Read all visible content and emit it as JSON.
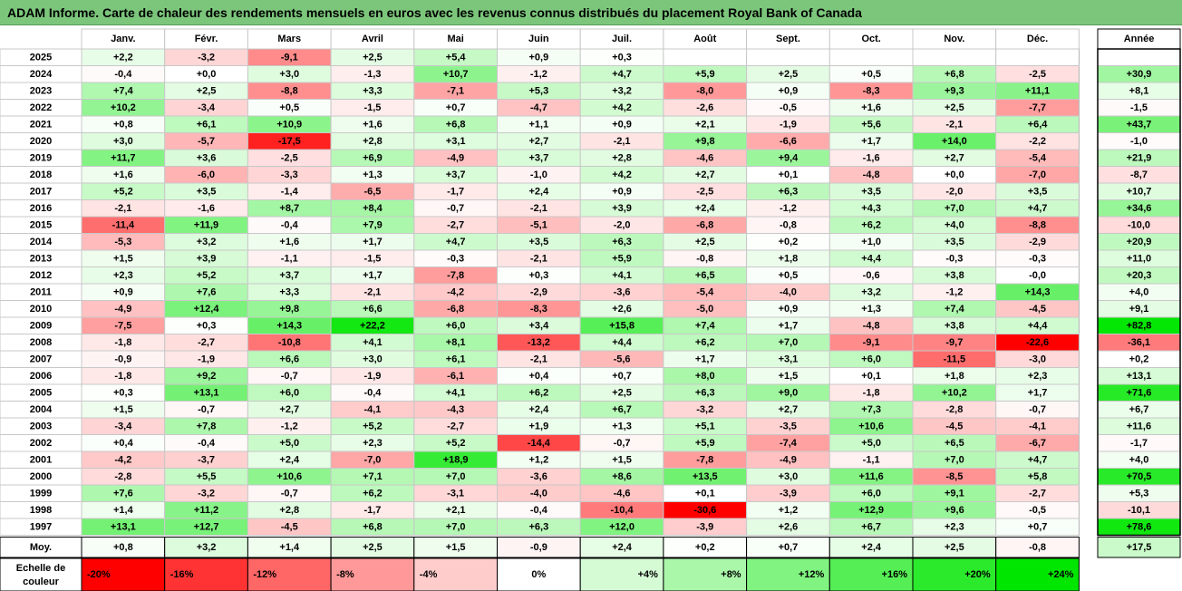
{
  "title": "ADAM Informe. Carte de chaleur des rendements mensuels en euros avec les revenus connus distribués du placement Royal Bank of Canada",
  "chart_data": {
    "type": "heatmap",
    "title": "ADAM Informe. Carte de chaleur des rendements mensuels en euros avec les revenus connus distribués du placement Royal Bank of Canada",
    "months": [
      "Janv.",
      "Févr.",
      "Mars",
      "Avril",
      "Mai",
      "Juin",
      "Juil.",
      "Août",
      "Sept.",
      "Oct.",
      "Nov.",
      "Déc."
    ],
    "year_header": "Année",
    "avg_label": "Moy.",
    "years": [
      "2025",
      "2024",
      "2023",
      "2022",
      "2021",
      "2020",
      "2019",
      "2018",
      "2017",
      "2016",
      "2015",
      "2014",
      "2013",
      "2012",
      "2011",
      "2010",
      "2009",
      "2008",
      "2007",
      "2006",
      "2005",
      "2004",
      "2003",
      "2002",
      "2001",
      "2000",
      "1999",
      "1998",
      "1997"
    ],
    "monthly": [
      [
        "+2,2",
        "-3,2",
        "-9,1",
        "+2,5",
        "+5,4",
        "+0,9",
        "+0,3",
        "",
        "",
        "",
        "",
        ""
      ],
      [
        "-0,4",
        "+0,0",
        "+3,0",
        "-1,3",
        "+10,7",
        "-1,2",
        "+4,7",
        "+5,9",
        "+2,5",
        "+0,5",
        "+6,8",
        "-2,5"
      ],
      [
        "+7,4",
        "+2,5",
        "-8,8",
        "+3,3",
        "-7,1",
        "+5,3",
        "+3,2",
        "-8,0",
        "+0,9",
        "-8,3",
        "+9,3",
        "+11,1"
      ],
      [
        "+10,2",
        "-3,4",
        "+0,5",
        "-1,5",
        "+0,7",
        "-4,7",
        "+4,2",
        "-2,6",
        "-0,5",
        "+1,6",
        "+2,5",
        "-7,7"
      ],
      [
        "+0,8",
        "+6,1",
        "+10,9",
        "+1,6",
        "+6,8",
        "+1,1",
        "+0,9",
        "+2,1",
        "-1,9",
        "+5,6",
        "-2,1",
        "+6,4"
      ],
      [
        "+3,0",
        "-5,7",
        "-17,5",
        "+2,8",
        "+3,1",
        "+2,7",
        "-2,1",
        "+9,8",
        "-6,6",
        "+1,7",
        "+14,0",
        "-2,2"
      ],
      [
        "+11,7",
        "+3,6",
        "-2,5",
        "+6,9",
        "-4,9",
        "+3,7",
        "+2,8",
        "-4,6",
        "+9,4",
        "-1,6",
        "+2,7",
        "-5,4"
      ],
      [
        "+1,6",
        "-6,0",
        "-3,3",
        "+1,3",
        "+3,7",
        "-1,0",
        "+4,2",
        "+2,7",
        "+0,1",
        "-4,8",
        "+0,0",
        "-7,0"
      ],
      [
        "+5,2",
        "+3,5",
        "-1,4",
        "-6,5",
        "-1,7",
        "+2,4",
        "+0,9",
        "-2,5",
        "+6,3",
        "+3,5",
        "-2,0",
        "+3,5"
      ],
      [
        "-2,1",
        "-1,6",
        "+8,7",
        "+8,4",
        "-0,7",
        "-2,1",
        "+3,9",
        "+2,4",
        "-1,2",
        "+4,3",
        "+7,0",
        "+4,7"
      ],
      [
        "-11,4",
        "+11,9",
        "-0,4",
        "+7,9",
        "-2,7",
        "-5,1",
        "-2,0",
        "-6,8",
        "-0,8",
        "+6,2",
        "+4,0",
        "-8,8"
      ],
      [
        "-5,3",
        "+3,2",
        "+1,6",
        "+1,7",
        "+4,7",
        "+3,5",
        "+6,3",
        "+2,5",
        "+0,2",
        "+1,0",
        "+3,5",
        "-2,9"
      ],
      [
        "+1,5",
        "+3,9",
        "-1,1",
        "-1,5",
        "-0,3",
        "-2,1",
        "+5,9",
        "-0,8",
        "+1,8",
        "+4,4",
        "-0,3",
        "-0,3"
      ],
      [
        "+2,3",
        "+5,2",
        "+3,7",
        "+1,7",
        "-7,8",
        "+0,3",
        "+4,1",
        "+6,5",
        "+0,5",
        "-0,6",
        "+3,8",
        "-0,0"
      ],
      [
        "+0,9",
        "+7,6",
        "+3,3",
        "-2,1",
        "-4,2",
        "-2,9",
        "-3,6",
        "-5,4",
        "-4,0",
        "+3,2",
        "-1,2",
        "+14,3"
      ],
      [
        "-4,9",
        "+12,4",
        "+9,8",
        "+6,6",
        "-6,8",
        "-8,3",
        "+2,6",
        "-5,0",
        "+0,9",
        "+1,3",
        "+7,4",
        "-4,5"
      ],
      [
        "-7,5",
        "+0,3",
        "+14,3",
        "+22,2",
        "+6,0",
        "+3,4",
        "+15,8",
        "+7,4",
        "+1,7",
        "-4,8",
        "+3,8",
        "+4,4"
      ],
      [
        "-1,8",
        "-2,7",
        "-10,8",
        "+4,1",
        "+8,1",
        "-13,2",
        "+4,4",
        "+6,2",
        "+7,0",
        "-9,1",
        "-9,7",
        "-22,6"
      ],
      [
        "-0,9",
        "-1,9",
        "+6,6",
        "+3,0",
        "+6,1",
        "-2,1",
        "-5,6",
        "+1,7",
        "+3,1",
        "+6,0",
        "-11,5",
        "-3,0"
      ],
      [
        "-1,8",
        "+9,2",
        "-0,7",
        "-1,9",
        "-6,1",
        "+0,4",
        "+0,7",
        "+8,0",
        "+1,5",
        "+0,1",
        "+1,8",
        "+2,3"
      ],
      [
        "+0,3",
        "+13,1",
        "+6,0",
        "-0,4",
        "+4,1",
        "+6,2",
        "+2,5",
        "+6,3",
        "+9,0",
        "-1,8",
        "+10,2",
        "+1,7"
      ],
      [
        "+1,5",
        "-0,7",
        "+2,7",
        "-4,1",
        "-4,3",
        "+2,4",
        "+6,7",
        "-3,2",
        "+2,7",
        "+7,3",
        "-2,8",
        "-0,7"
      ],
      [
        "-3,4",
        "+7,8",
        "-1,2",
        "+5,2",
        "-2,7",
        "+1,9",
        "+1,3",
        "+5,1",
        "-3,5",
        "+10,6",
        "-4,5",
        "-4,1"
      ],
      [
        "+0,4",
        "-0,4",
        "+5,0",
        "+2,3",
        "+5,2",
        "-14,4",
        "-0,7",
        "+5,9",
        "-7,4",
        "+5,0",
        "+6,5",
        "-6,7"
      ],
      [
        "-4,2",
        "-3,7",
        "+2,4",
        "-7,0",
        "+18,9",
        "+1,2",
        "+1,5",
        "-7,8",
        "-4,9",
        "-1,1",
        "+7,0",
        "+4,7"
      ],
      [
        "-2,8",
        "+5,5",
        "+10,6",
        "+7,1",
        "+7,0",
        "-3,6",
        "+8,6",
        "+13,5",
        "+3,0",
        "+11,6",
        "-8,5",
        "+5,8"
      ],
      [
        "+7,6",
        "-3,2",
        "-0,7",
        "+6,2",
        "-3,1",
        "-4,0",
        "-4,6",
        "+0,1",
        "-3,9",
        "+6,0",
        "+9,1",
        "-2,7"
      ],
      [
        "+1,4",
        "+11,2",
        "+2,8",
        "-1,7",
        "+2,1",
        "-0,4",
        "-10,4",
        "-30,6",
        "+1,2",
        "+12,9",
        "+9,6",
        "-0,5"
      ],
      [
        "+13,1",
        "+12,7",
        "-4,5",
        "+6,8",
        "+7,0",
        "+6,3",
        "+12,0",
        "-3,9",
        "+2,6",
        "+6,7",
        "+2,3",
        "+0,7"
      ]
    ],
    "annual": [
      "",
      "+30,9",
      "+8,1",
      "-1,5",
      "+43,7",
      "-1,0",
      "+21,9",
      "-8,7",
      "+10,7",
      "+34,6",
      "-10,0",
      "+20,9",
      "+11,0",
      "+20,3",
      "+4,0",
      "+9,1",
      "+82,8",
      "-36,1",
      "+0,2",
      "+13,1",
      "+71,6",
      "+6,7",
      "+11,6",
      "-1,7",
      "+4,0",
      "+70,5",
      "+5,3",
      "-10,1",
      "+78,6"
    ],
    "averages": [
      "+0,8",
      "+3,2",
      "+1,4",
      "+2,5",
      "+1,5",
      "-0,9",
      "+2,4",
      "+0,2",
      "+0,7",
      "+2,4",
      "+2,5",
      "-0,8"
    ],
    "annual_average": "+17,5",
    "scale_label": "Echelle de couleur",
    "scale": [
      "-20%",
      "-16%",
      "-12%",
      "-8%",
      "-4%",
      "0%",
      "+4%",
      "+8%",
      "+12%",
      "+16%",
      "+20%",
      "+24%"
    ],
    "colors": {
      "negative_max": "#ff0000",
      "positive_max": "#00e600",
      "neutral": "#ffffff",
      "title_bar": "#7bc67b"
    }
  }
}
